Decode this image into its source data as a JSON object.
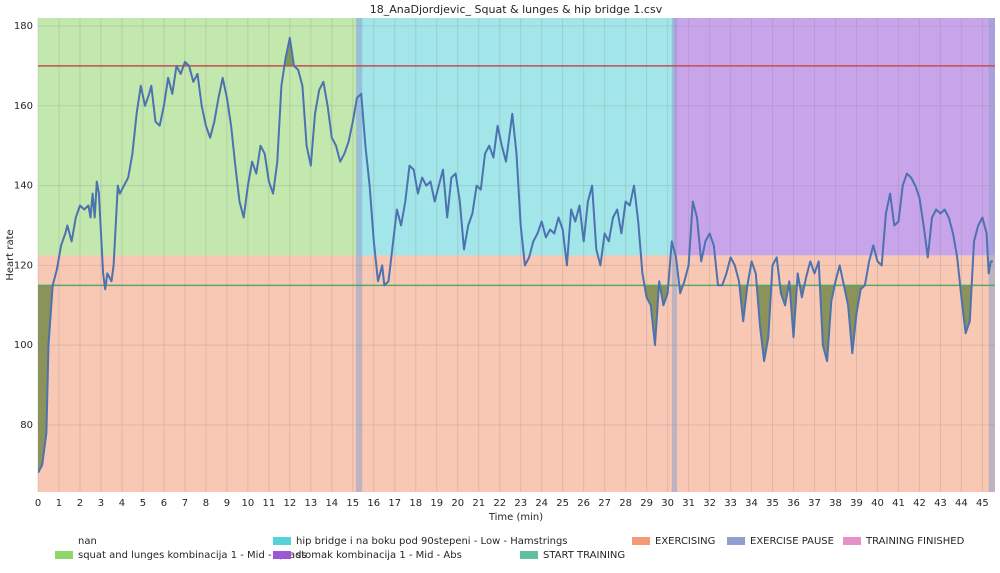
{
  "chart_data": {
    "type": "line",
    "title": "18_AnaDjordjevic_ Squat & lunges & hip bridge 1.csv",
    "xlabel": "Time (min)",
    "ylabel": "Heart rate",
    "xlim": [
      0,
      45.6
    ],
    "ylim": [
      63.2,
      182
    ],
    "xticks": [
      0,
      1,
      2,
      3,
      4,
      5,
      6,
      7,
      8,
      9,
      10,
      11,
      12,
      13,
      14,
      15,
      16,
      17,
      18,
      19,
      20,
      21,
      22,
      23,
      24,
      25,
      26,
      27,
      28,
      29,
      30,
      31,
      32,
      33,
      34,
      35,
      36,
      37,
      38,
      39,
      40,
      41,
      42,
      43,
      44,
      45
    ],
    "yticks": [
      80,
      100,
      120,
      140,
      160,
      180
    ],
    "grid": true,
    "x": [
      0,
      0.2,
      0.4,
      0.5,
      0.7,
      0.9,
      1.1,
      1.3,
      1.4,
      1.6,
      1.8,
      2.0,
      2.2,
      2.4,
      2.5,
      2.6,
      2.7,
      2.8,
      2.9,
      3.0,
      3.1,
      3.2,
      3.3,
      3.5,
      3.6,
      3.8,
      3.9,
      4.1,
      4.3,
      4.5,
      4.7,
      4.9,
      5.1,
      5.3,
      5.4,
      5.6,
      5.8,
      6.0,
      6.2,
      6.4,
      6.6,
      6.8,
      7.0,
      7.2,
      7.4,
      7.6,
      7.8,
      8.0,
      8.2,
      8.4,
      8.6,
      8.8,
      9.0,
      9.2,
      9.4,
      9.6,
      9.8,
      10.0,
      10.2,
      10.4,
      10.6,
      10.8,
      11.0,
      11.2,
      11.4,
      11.6,
      11.8,
      12.0,
      12.2,
      12.4,
      12.6,
      12.8,
      13.0,
      13.2,
      13.4,
      13.6,
      13.8,
      14.0,
      14.2,
      14.4,
      14.6,
      14.8,
      15.0,
      15.2,
      15.4,
      15.6,
      15.8,
      16.0,
      16.2,
      16.4,
      16.5,
      16.7,
      16.9,
      17.1,
      17.3,
      17.5,
      17.7,
      17.9,
      18.1,
      18.3,
      18.5,
      18.7,
      18.9,
      19.1,
      19.3,
      19.5,
      19.7,
      19.9,
      20.1,
      20.3,
      20.5,
      20.7,
      20.9,
      21.1,
      21.3,
      21.5,
      21.7,
      21.9,
      22.1,
      22.3,
      22.6,
      22.8,
      23.0,
      23.2,
      23.4,
      23.6,
      23.8,
      24.0,
      24.2,
      24.4,
      24.6,
      24.8,
      25.0,
      25.2,
      25.4,
      25.6,
      25.8,
      26.0,
      26.2,
      26.4,
      26.6,
      26.8,
      27.0,
      27.2,
      27.4,
      27.6,
      27.8,
      28.0,
      28.2,
      28.4,
      28.6,
      28.8,
      29.0,
      29.2,
      29.4,
      29.6,
      29.8,
      30.0,
      30.2,
      30.4,
      30.6,
      30.8,
      31.0,
      31.2,
      31.4,
      31.6,
      31.8,
      32.0,
      32.2,
      32.4,
      32.6,
      32.8,
      33.0,
      33.2,
      33.4,
      33.6,
      33.8,
      34.0,
      34.2,
      34.4,
      34.6,
      34.8,
      35.0,
      35.2,
      35.4,
      35.6,
      35.8,
      36.0,
      36.2,
      36.4,
      36.6,
      36.8,
      37.0,
      37.2,
      37.4,
      37.6,
      37.8,
      38.0,
      38.2,
      38.4,
      38.6,
      38.8,
      39.0,
      39.2,
      39.4,
      39.6,
      39.8,
      40.0,
      40.2,
      40.4,
      40.6,
      40.8,
      41.0,
      41.2,
      41.4,
      41.6,
      41.8,
      42.0,
      42.2,
      42.4,
      42.6,
      42.8,
      43.0,
      43.2,
      43.4,
      43.6,
      43.8,
      44.0,
      44.2,
      44.4,
      44.6,
      44.8,
      45.0,
      45.2,
      45.3,
      45.4,
      45.5
    ],
    "series": [
      {
        "color": "#4c72b0",
        "fill_color": "#6f8444",
        "values": [
          68,
          70,
          78,
          100,
          115,
          119,
          125,
          128,
          130,
          126,
          132,
          135,
          134,
          135,
          132,
          138,
          132,
          141,
          138,
          128,
          118,
          114,
          118,
          116,
          120,
          140,
          138,
          140,
          142,
          148,
          158,
          165,
          160,
          163,
          165,
          156,
          155,
          160,
          167,
          163,
          170,
          168,
          171,
          170,
          166,
          168,
          160,
          155,
          152,
          156,
          162,
          167,
          162,
          155,
          145,
          136,
          132,
          140,
          146,
          143,
          150,
          148,
          141,
          138,
          146,
          165,
          172,
          177,
          170,
          169,
          165,
          150,
          145,
          158,
          164,
          166,
          160,
          152,
          150,
          146,
          148,
          151,
          156,
          162,
          163,
          150,
          140,
          126,
          116,
          120,
          115,
          116,
          125,
          134,
          130,
          136,
          145,
          144,
          138,
          142,
          140,
          141,
          136,
          140,
          144,
          132,
          142,
          143,
          136,
          124,
          130,
          133,
          140,
          139,
          148,
          150,
          147,
          155,
          150,
          146,
          158,
          148,
          130,
          120,
          122,
          126,
          128,
          131,
          127,
          129,
          128,
          132,
          129,
          120,
          134,
          131,
          135,
          126,
          136,
          140,
          124,
          120,
          128,
          126,
          132,
          134,
          128,
          136,
          135,
          140,
          131,
          118,
          112,
          110,
          100,
          116,
          110,
          113,
          126,
          122,
          113,
          116,
          120,
          136,
          132,
          121,
          126,
          128,
          125,
          115,
          115,
          118,
          122,
          120,
          116,
          106,
          115,
          121,
          118,
          105,
          96,
          102,
          120,
          122,
          113,
          110,
          116,
          102,
          118,
          112,
          117,
          121,
          118,
          121,
          100,
          96,
          111,
          116,
          120,
          115,
          110,
          98,
          108,
          114,
          115,
          121,
          125,
          121,
          120,
          133,
          138,
          130,
          131,
          140,
          143,
          142,
          140,
          137,
          130,
          122,
          132,
          134,
          133,
          134,
          132,
          128,
          122,
          112,
          103,
          106,
          126,
          130,
          132,
          128,
          118,
          121,
          121
        ]
      }
    ],
    "hlines": [
      {
        "value": 170,
        "color": "#c44e52"
      },
      {
        "value": 115,
        "color": "#55a868"
      }
    ],
    "legend": [
      {
        "label": "nan"
      },
      {
        "label": "squat and lunges kombinacija 1 - Mid -  Quads",
        "color": "#8fd66b",
        "band": "upper",
        "spans": [
          [
            0,
            15.2
          ]
        ]
      },
      {
        "label": "hip bridge i na boku pod 90stepeni - Low -  Hamstrings",
        "color": "#55d1d8",
        "band": "upper",
        "spans": [
          [
            15.2,
            30.3
          ]
        ]
      },
      {
        "label": "stomak kombinacija 1 - Mid -  Abs",
        "color": "#9b59d8",
        "band": "upper",
        "spans": [
          [
            30.3,
            45.6
          ]
        ]
      },
      {
        "label": "START TRAINING",
        "color": "#5fbf9f"
      },
      {
        "label": "EXERCISING",
        "color": "#f49a76",
        "band": "lower",
        "ymax": 122.5,
        "spans": [
          [
            0,
            45.6
          ]
        ]
      },
      {
        "label": "EXERCISE PAUSE",
        "color": "#8fa0cc",
        "band": "full",
        "spans": [
          [
            15.15,
            15.45
          ],
          [
            30.2,
            30.45
          ],
          [
            45.3,
            45.6
          ]
        ]
      },
      {
        "label": "TRAINING FINISHED",
        "color": "#e890c8"
      }
    ]
  }
}
